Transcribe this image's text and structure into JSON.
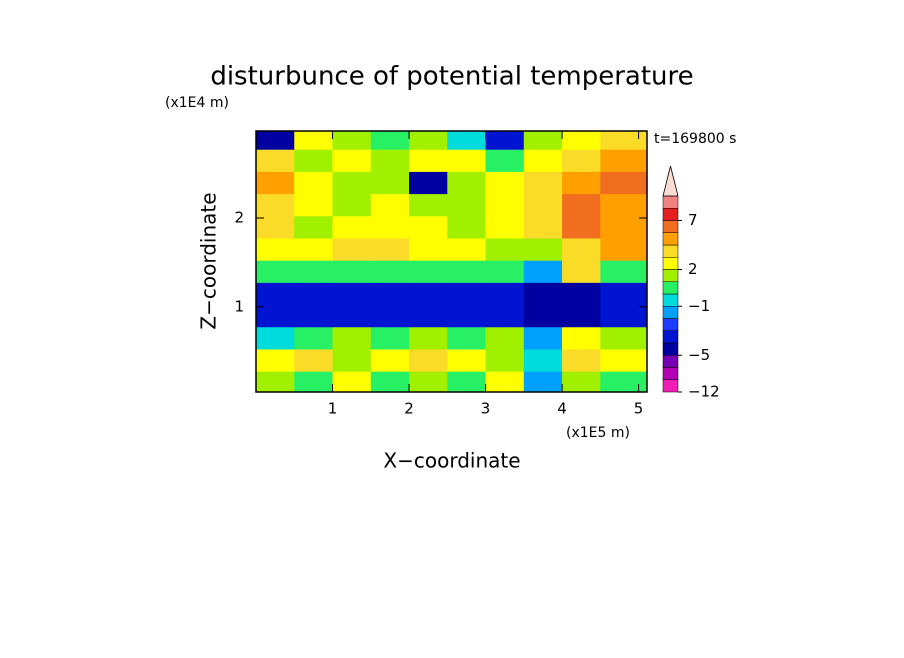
{
  "chart_data": {
    "type": "contour",
    "title": "disturbunce of potential temperature",
    "x_label": "X−coordinate",
    "x_unit": "(x1E5 m)",
    "y_label": "Z−coordinate",
    "y_unit": "(x1E4 m)",
    "annotation": "t=169800 s",
    "xlim": [
      0,
      5.11
    ],
    "xticks": [
      1,
      2,
      3,
      4,
      5
    ],
    "ylim": [
      0.04,
      2.98
    ],
    "yticks": [
      1,
      2
    ],
    "x": [
      0.25,
      0.75,
      1.25,
      1.75,
      2.25,
      2.75,
      3.25,
      3.75,
      4.25,
      4.75
    ],
    "y": [
      0.15,
      0.4,
      0.65,
      0.9,
      1.15,
      1.4,
      1.65,
      1.9,
      2.15,
      2.4,
      2.65,
      2.9
    ],
    "z": [
      [
        1.5,
        0.5,
        2.5,
        0.5,
        1.5,
        0.5,
        2.5,
        -1.5,
        1.5,
        0.5
      ],
      [
        2.5,
        3.5,
        1.5,
        2.5,
        3.5,
        2.5,
        1.5,
        -0.5,
        3.5,
        2.5
      ],
      [
        -0.5,
        0.5,
        1.5,
        0.5,
        1.5,
        0.5,
        1.5,
        -1.5,
        2.5,
        1.5
      ],
      [
        -3.5,
        -3.5,
        -3.5,
        -3.5,
        -3.5,
        -3.5,
        -3.5,
        -4.5,
        -4.5,
        -3.5
      ],
      [
        -3.5,
        -3.5,
        -3.5,
        -3.5,
        -3.5,
        -3.5,
        -3.5,
        -4.5,
        -4.5,
        -3.5
      ],
      [
        0.5,
        0.5,
        0.5,
        0.5,
        0.5,
        0.5,
        0.5,
        -1.5,
        3.5,
        0.5
      ],
      [
        2.5,
        2.5,
        3.5,
        3.5,
        2.5,
        2.5,
        1.5,
        1.5,
        3.5,
        4.5
      ],
      [
        3.5,
        1.5,
        2.5,
        2.5,
        2.5,
        1.5,
        2.5,
        3.5,
        6,
        4.5
      ],
      [
        3.5,
        2.5,
        1.5,
        2.5,
        1.5,
        1.5,
        2.5,
        3.5,
        6,
        4.5
      ],
      [
        4.5,
        2.5,
        1.5,
        1.5,
        -4.5,
        1.5,
        2.5,
        3.5,
        4.5,
        6
      ],
      [
        3.5,
        1.5,
        2.5,
        1.5,
        2.5,
        2.5,
        0.5,
        2.5,
        3.5,
        4.5
      ],
      [
        -4.5,
        2.5,
        1.5,
        0.5,
        1.5,
        -0.5,
        -3.5,
        1.5,
        2.5,
        3.5
      ]
    ],
    "levels": [
      -12,
      -10,
      -8,
      -5,
      -4,
      -3,
      -2,
      -1,
      0,
      1,
      2,
      3,
      4,
      5,
      7,
      9,
      11
    ],
    "colors": [
      "#f01eb4",
      "#b400b4",
      "#7800b4",
      "#0000a0",
      "#0014d2",
      "#1e3cff",
      "#00a0ff",
      "#00dcdc",
      "#28f064",
      "#a0f000",
      "#ffff00",
      "#fadc28",
      "#ffa000",
      "#f06e1e",
      "#e61e1e",
      "#f08282"
    ],
    "over_color": "#fadcd2",
    "colorbar_ticks": [
      {
        "value": -12,
        "label": "−12"
      },
      {
        "value": -5,
        "label": "−5"
      },
      {
        "value": -1,
        "label": "−1"
      },
      2,
      7
    ]
  }
}
